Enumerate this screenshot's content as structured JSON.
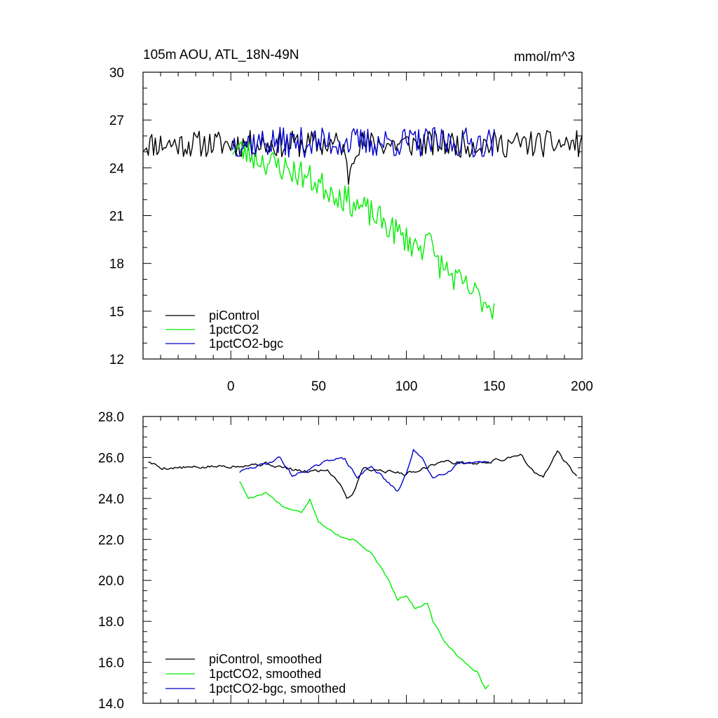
{
  "chart_data": [
    {
      "type": "line",
      "title_left": "105m AOU, ATL_18N-49N",
      "title_right": "mmol/m^3",
      "xlim": [
        -50,
        200
      ],
      "ylim": [
        12,
        30
      ],
      "x_ticks": [
        0,
        50,
        100,
        150,
        200
      ],
      "y_ticks": [
        12,
        15,
        18,
        21,
        24,
        27,
        30
      ],
      "y_tick_labels": [
        "12",
        "15",
        "18",
        "21",
        "24",
        "27",
        "30"
      ],
      "legend": {
        "position": "bottom-left",
        "entries": [
          "piControl",
          "1pctCO2",
          "1pctCO2-bgc"
        ]
      },
      "series": [
        {
          "name": "piControl",
          "color": "#000000",
          "x_start": -50,
          "x_end": 200,
          "baseline": 25.5,
          "noise": 0.85,
          "seed": 11,
          "events": [
            {
              "x": 67,
              "depth": 2.0,
              "width": 3
            }
          ]
        },
        {
          "name": "1pctCO2",
          "color": "#00ee00",
          "x_start": 1,
          "x_end": 150,
          "profile": [
            [
              1,
              25.3
            ],
            [
              20,
              24.4
            ],
            [
              40,
              23.6
            ],
            [
              60,
              22.4
            ],
            [
              80,
              21.1
            ],
            [
              100,
              19.5
            ],
            [
              115,
              18.4
            ],
            [
              130,
              16.8
            ],
            [
              150,
              15.2
            ]
          ],
          "noise": 0.9,
          "seed": 23,
          "events": [
            {
              "x": 112,
              "depth": -2.0,
              "width": 2
            }
          ]
        },
        {
          "name": "1pctCO2-bgc",
          "color": "#0000cc",
          "x_start": 1,
          "x_end": 150,
          "baseline": 25.6,
          "noise": 0.95,
          "seed": 37,
          "events": []
        }
      ]
    },
    {
      "type": "line",
      "xlim": [
        -50,
        200
      ],
      "ylim": [
        14,
        28
      ],
      "x_ticks": [
        0,
        50,
        100,
        150,
        200
      ],
      "y_ticks": [
        14,
        16,
        18,
        20,
        22,
        24,
        26,
        28
      ],
      "y_tick_labels": [
        "14.0",
        "16.0",
        "18.0",
        "20.0",
        "22.0",
        "24.0",
        "26.0",
        "28.0"
      ],
      "legend": {
        "position": "bottom-left",
        "entries": [
          "piControl, smoothed",
          "1pctCO2, smoothed",
          "1pctCO2-bgc, smoothed"
        ]
      },
      "series": [
        {
          "name": "piControl, smoothed",
          "color": "#000000",
          "x_start": -47,
          "x_end": 197,
          "profile": [
            [
              -47,
              25.8
            ],
            [
              -40,
              25.5
            ],
            [
              -20,
              25.5
            ],
            [
              0,
              25.6
            ],
            [
              20,
              25.7
            ],
            [
              40,
              25.3
            ],
            [
              55,
              25.4
            ],
            [
              62,
              24.8
            ],
            [
              66,
              24.05
            ],
            [
              70,
              24.3
            ],
            [
              75,
              25.5
            ],
            [
              100,
              25.2
            ],
            [
              120,
              25.8
            ],
            [
              140,
              25.7
            ],
            [
              155,
              25.9
            ],
            [
              165,
              26.2
            ],
            [
              172,
              25.3
            ],
            [
              178,
              25.0
            ],
            [
              186,
              26.3
            ],
            [
              192,
              25.6
            ],
            [
              197,
              25.1
            ]
          ],
          "noise": 0.18,
          "seed": 5
        },
        {
          "name": "1pctCO2, smoothed",
          "color": "#00ee00",
          "x_start": 5,
          "x_end": 147,
          "profile": [
            [
              5,
              24.85
            ],
            [
              10,
              24.0
            ],
            [
              20,
              24.3
            ],
            [
              30,
              23.6
            ],
            [
              40,
              23.3
            ],
            [
              45,
              24.0
            ],
            [
              50,
              22.9
            ],
            [
              60,
              22.2
            ],
            [
              70,
              22.0
            ],
            [
              80,
              21.3
            ],
            [
              90,
              20.0
            ],
            [
              95,
              19.1
            ],
            [
              100,
              19.3
            ],
            [
              105,
              18.6
            ],
            [
              112,
              18.9
            ],
            [
              115,
              18.0
            ],
            [
              122,
              17.0
            ],
            [
              130,
              16.2
            ],
            [
              140,
              15.6
            ],
            [
              145,
              14.7
            ],
            [
              147,
              14.9
            ]
          ],
          "noise": 0.12,
          "seed": 17
        },
        {
          "name": "1pctCO2-bgc, smoothed",
          "color": "#0000cc",
          "x_start": 5,
          "x_end": 147,
          "profile": [
            [
              5,
              25.3
            ],
            [
              20,
              25.7
            ],
            [
              28,
              26.0
            ],
            [
              35,
              25.1
            ],
            [
              50,
              25.6
            ],
            [
              60,
              26.0
            ],
            [
              65,
              25.9
            ],
            [
              72,
              25.0
            ],
            [
              80,
              25.6
            ],
            [
              88,
              24.9
            ],
            [
              95,
              24.3
            ],
            [
              100,
              25.2
            ],
            [
              104,
              26.4
            ],
            [
              110,
              25.8
            ],
            [
              115,
              25.0
            ],
            [
              125,
              25.4
            ],
            [
              130,
              25.8
            ],
            [
              140,
              25.7
            ],
            [
              147,
              25.7
            ]
          ],
          "noise": 0.15,
          "seed": 29
        }
      ]
    }
  ]
}
